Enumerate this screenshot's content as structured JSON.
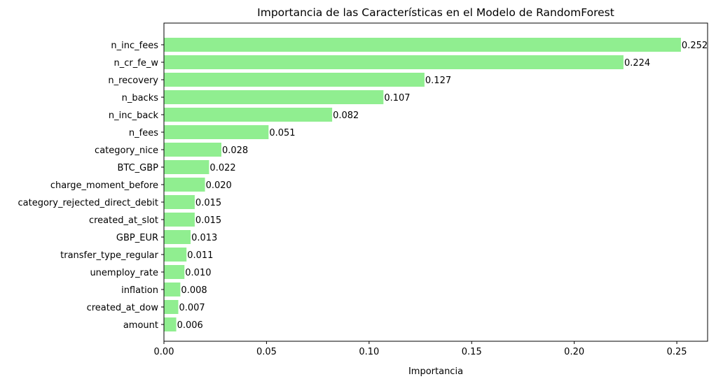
{
  "chart_data": {
    "type": "bar",
    "orientation": "horizontal",
    "title": "Importancia de las Características en el Modelo de RandomForest",
    "xlabel": "Importancia",
    "ylabel": "",
    "xlim": [
      0,
      0.265
    ],
    "xticks": [
      0.0,
      0.05,
      0.1,
      0.15,
      0.2,
      0.25
    ],
    "xtick_labels": [
      "0.00",
      "0.05",
      "0.10",
      "0.15",
      "0.20",
      "0.25"
    ],
    "grid": false,
    "legend": "none",
    "bar_color": "#90ee90",
    "categories": [
      "n_inc_fees",
      "n_cr_fe_w",
      "n_recovery",
      "n_backs",
      "n_inc_back",
      "n_fees",
      "category_nice",
      "BTC_GBP",
      "charge_moment_before",
      "category_rejected_direct_debit",
      "created_at_slot",
      "GBP_EUR",
      "transfer_type_regular",
      "unemploy_rate",
      "inflation",
      "created_at_dow",
      "amount"
    ],
    "values": [
      0.252,
      0.224,
      0.127,
      0.107,
      0.082,
      0.051,
      0.028,
      0.022,
      0.02,
      0.015,
      0.015,
      0.013,
      0.011,
      0.01,
      0.008,
      0.007,
      0.006
    ],
    "value_labels": [
      "0.252",
      "0.224",
      "0.127",
      "0.107",
      "0.082",
      "0.051",
      "0.028",
      "0.022",
      "0.020",
      "0.015",
      "0.015",
      "0.013",
      "0.011",
      "0.010",
      "0.008",
      "0.007",
      "0.006"
    ]
  }
}
